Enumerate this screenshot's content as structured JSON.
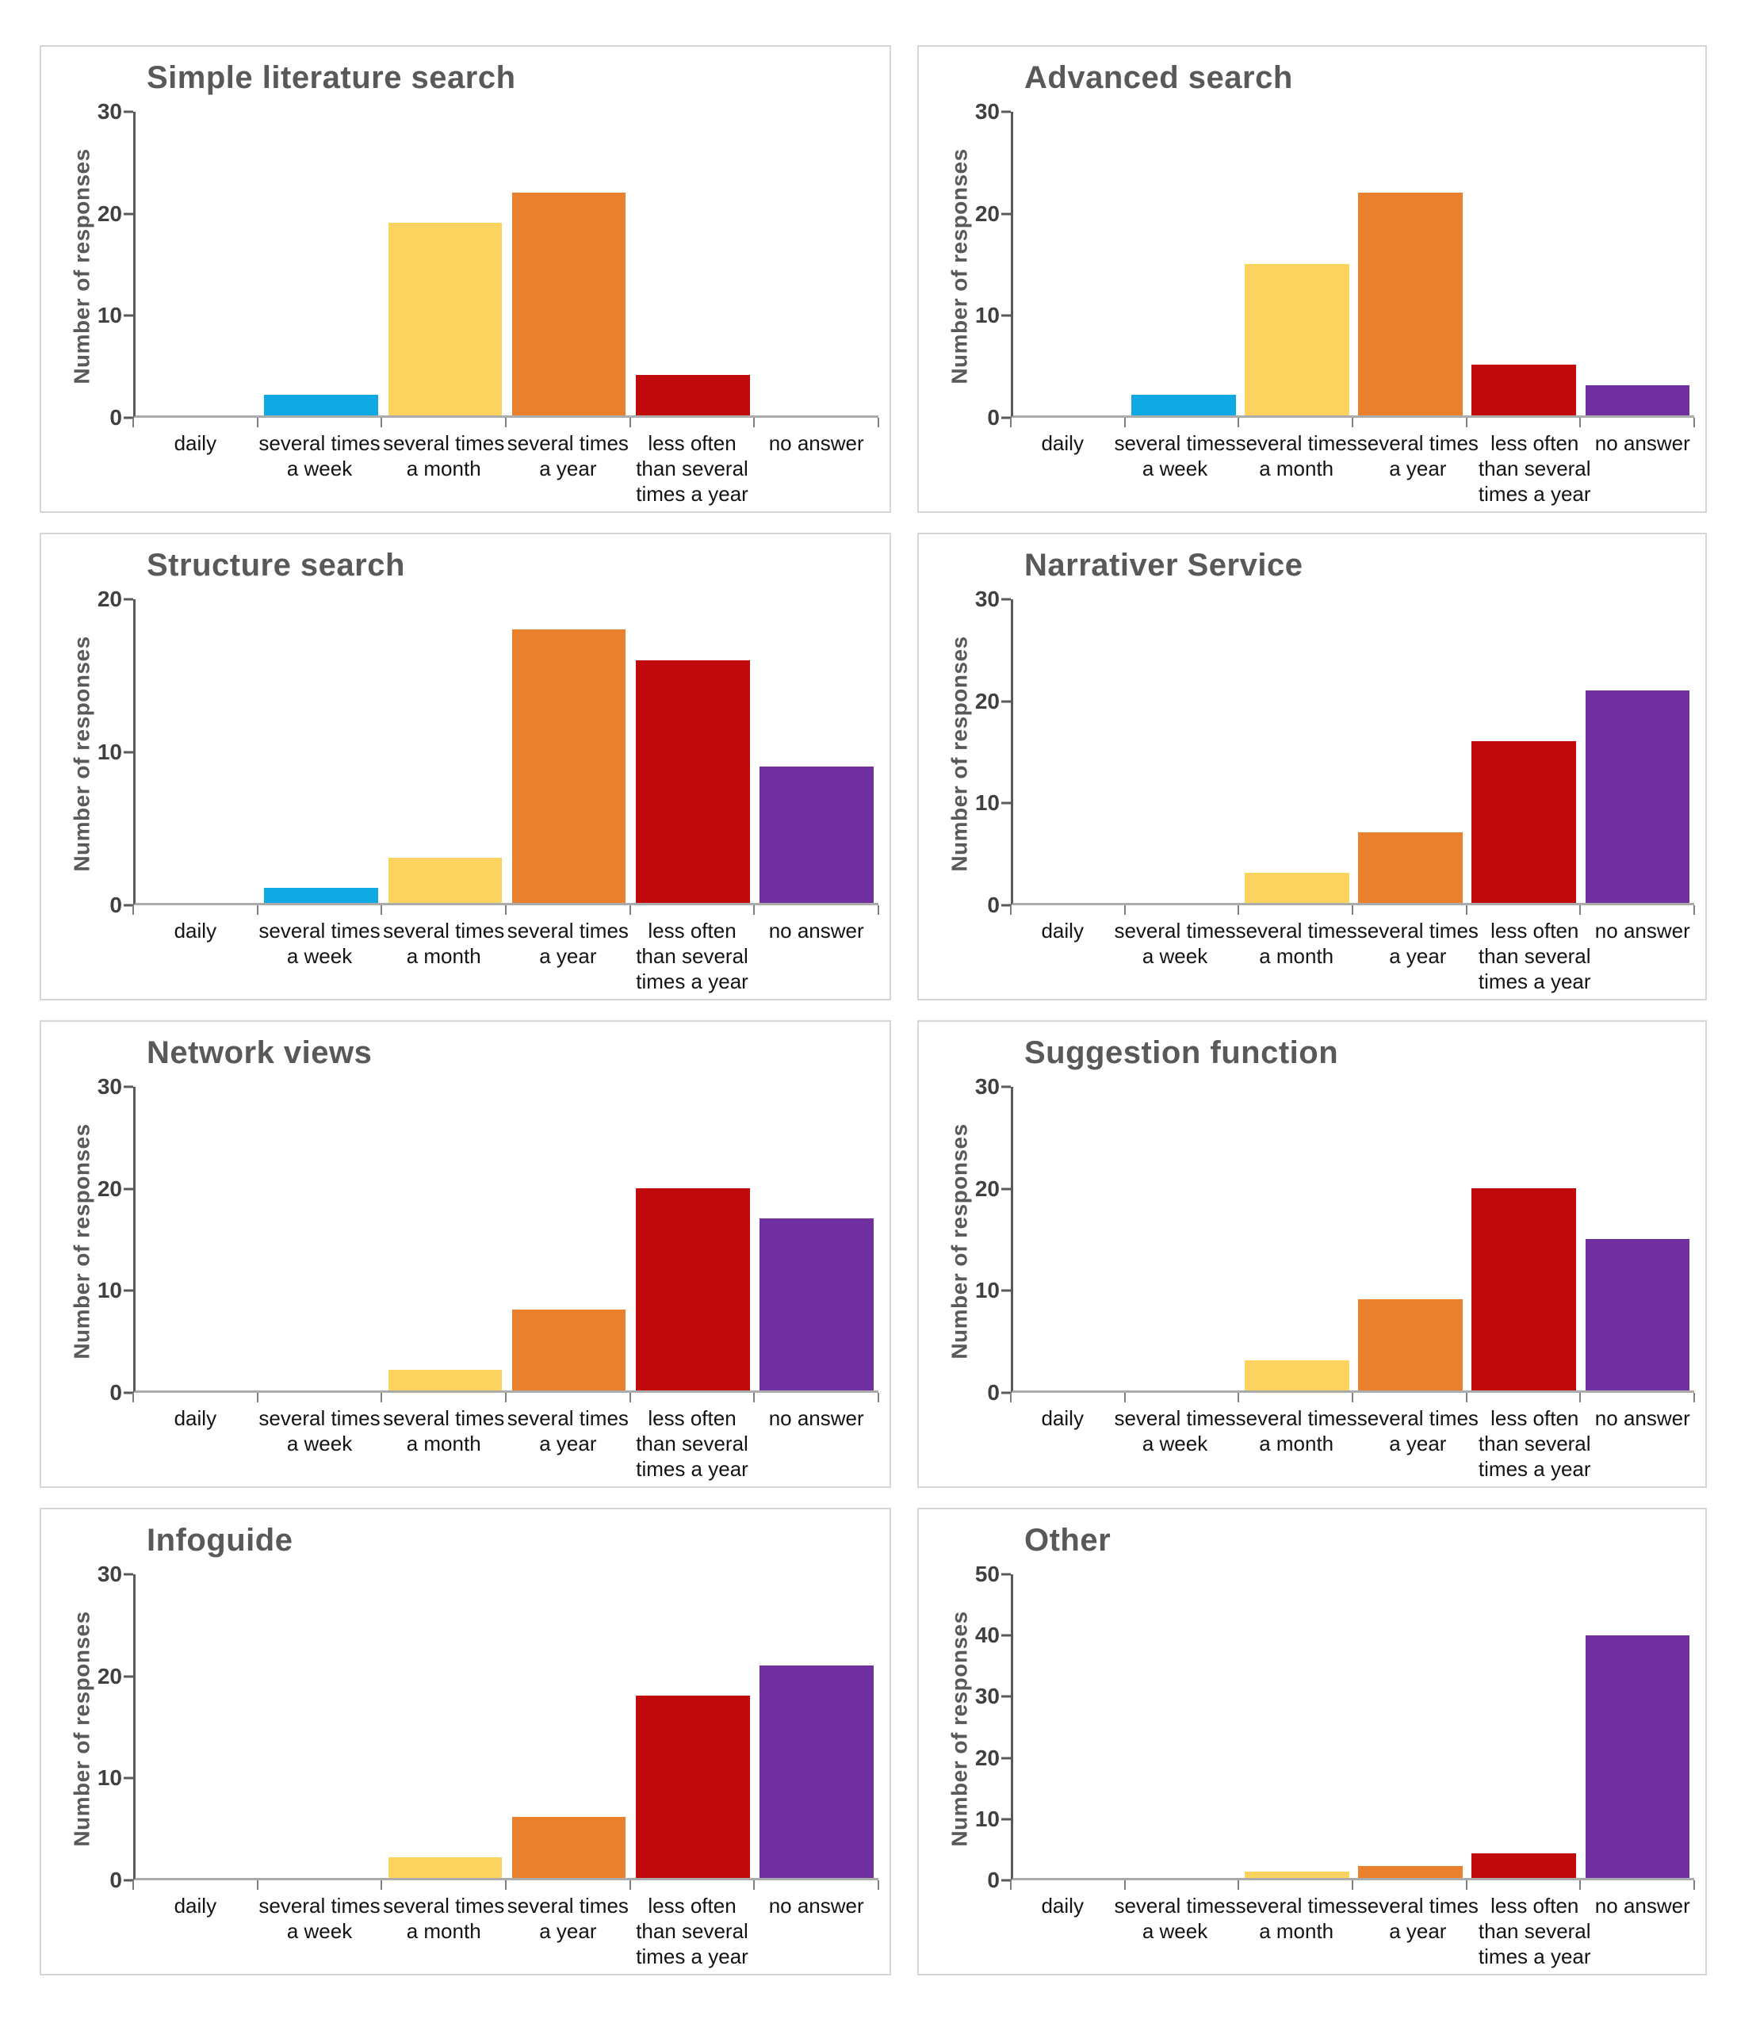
{
  "page": {
    "background": "#ffffff",
    "panel_border_color": "#d6d6d6"
  },
  "style": {
    "title_color": "#595959",
    "axis_line_color": "#595959",
    "baseline_color": "#ababab",
    "tick_label_color": "#404040",
    "category_label_color": "#141414"
  },
  "bar_colors": [
    null,
    "#0ea8e2",
    "#fbd35e",
    "#e8802d",
    "#c00a0b",
    "#7030a0"
  ],
  "x_axis_label_lines": [
    [
      "daily"
    ],
    [
      "several times",
      "a week"
    ],
    [
      "several times",
      "a month"
    ],
    [
      "several times",
      "a year"
    ],
    [
      "less often",
      "than several",
      "times a year"
    ],
    [
      "no answer"
    ]
  ],
  "chart_data": [
    {
      "type": "bar",
      "title": "Simple literature search",
      "xlabel": "",
      "ylabel": "Number of responses",
      "categories": [
        "daily",
        "several times a week",
        "several times a month",
        "several times a year",
        "less often than several times a year",
        "no answer"
      ],
      "values": [
        0,
        2,
        19,
        22,
        4,
        0
      ],
      "ylim": [
        0,
        30
      ],
      "yticks": [
        0,
        10,
        20,
        30
      ],
      "grid": false
    },
    {
      "type": "bar",
      "title": "Advanced search",
      "xlabel": "",
      "ylabel": "Number of responses",
      "categories": [
        "daily",
        "several times a week",
        "several times a month",
        "several times a year",
        "less often than several times a year",
        "no answer"
      ],
      "values": [
        0,
        2,
        15,
        22,
        5,
        3
      ],
      "ylim": [
        0,
        30
      ],
      "yticks": [
        0,
        10,
        20,
        30
      ],
      "grid": false
    },
    {
      "type": "bar",
      "title": "Structure search",
      "xlabel": "",
      "ylabel": "Number of responses",
      "categories": [
        "daily",
        "several times a week",
        "several times a month",
        "several times a year",
        "less often than several times a year",
        "no answer"
      ],
      "values": [
        0,
        1,
        3,
        18,
        16,
        9
      ],
      "ylim": [
        0,
        20
      ],
      "yticks": [
        0,
        10,
        20
      ],
      "grid": false
    },
    {
      "type": "bar",
      "title": "Narrativer Service",
      "xlabel": "",
      "ylabel": "Number of responses",
      "categories": [
        "daily",
        "several times a week",
        "several times a month",
        "several times a year",
        "less often than several times a year",
        "no answer"
      ],
      "values": [
        0,
        0,
        3,
        7,
        16,
        21
      ],
      "ylim": [
        0,
        30
      ],
      "yticks": [
        0,
        10,
        20,
        30
      ],
      "grid": false
    },
    {
      "type": "bar",
      "title": "Network views",
      "xlabel": "",
      "ylabel": "Number of responses",
      "categories": [
        "daily",
        "several times a week",
        "several times a month",
        "several times a year",
        "less often than several times a year",
        "no answer"
      ],
      "values": [
        0,
        0,
        2,
        8,
        20,
        17
      ],
      "ylim": [
        0,
        30
      ],
      "yticks": [
        0,
        10,
        20,
        30
      ],
      "grid": false
    },
    {
      "type": "bar",
      "title": "Suggestion function",
      "xlabel": "",
      "ylabel": "Number of responses",
      "categories": [
        "daily",
        "several times a week",
        "several times a month",
        "several times a year",
        "less often than several times a year",
        "no answer"
      ],
      "values": [
        0,
        0,
        3,
        9,
        20,
        15
      ],
      "ylim": [
        0,
        30
      ],
      "yticks": [
        0,
        10,
        20,
        30
      ],
      "grid": false
    },
    {
      "type": "bar",
      "title": "Infoguide",
      "xlabel": "",
      "ylabel": "Number of responses",
      "categories": [
        "daily",
        "several times a week",
        "several times a month",
        "several times a year",
        "less often than several times a year",
        "no answer"
      ],
      "values": [
        0,
        0,
        2,
        6,
        18,
        21
      ],
      "ylim": [
        0,
        30
      ],
      "yticks": [
        0,
        10,
        20,
        30
      ],
      "grid": false
    },
    {
      "type": "bar",
      "title": "Other",
      "xlabel": "",
      "ylabel": "Number of responses",
      "categories": [
        "daily",
        "several times a week",
        "several times a month",
        "several times a year",
        "less often than several times a year",
        "no answer"
      ],
      "values": [
        0,
        0,
        1,
        2,
        4,
        40
      ],
      "ylim": [
        0,
        50
      ],
      "yticks": [
        0,
        10,
        20,
        30,
        40,
        50
      ],
      "grid": false
    }
  ]
}
